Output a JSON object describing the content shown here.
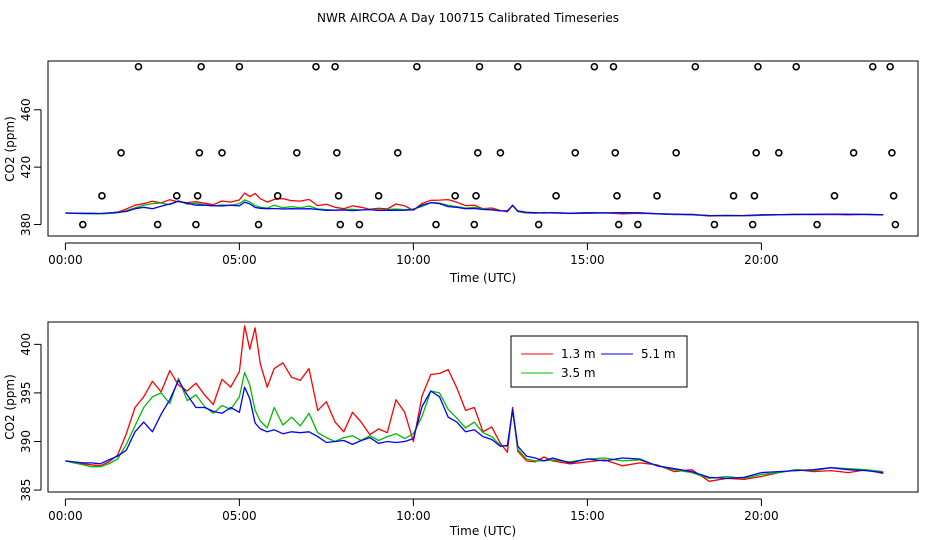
{
  "page_title": "NWR AIRCOA A  Day 100715  Calibrated Timeseries",
  "chart_data": [
    {
      "type": "scatter",
      "title": "",
      "xlabel": "Time (UTC)",
      "ylabel": "CO2 (ppm)",
      "xlim": [
        -0.5,
        24.5
      ],
      "ylim": [
        372,
        494
      ],
      "x_ticks": [
        0,
        5,
        10,
        15,
        20
      ],
      "x_tick_labels": [
        "00:00",
        "05:00",
        "10:00",
        "15:00",
        "20:00"
      ],
      "y_ticks": [
        380,
        420,
        460
      ],
      "y_tick_labels": [
        "380",
        "420",
        "460"
      ],
      "calibration_points": [
        {
          "x": 0.5,
          "y": 380
        },
        {
          "x": 1.05,
          "y": 400
        },
        {
          "x": 1.6,
          "y": 430
        },
        {
          "x": 2.1,
          "y": 490
        },
        {
          "x": 2.65,
          "y": 380
        },
        {
          "x": 3.2,
          "y": 400
        },
        {
          "x": 3.75,
          "y": 380
        },
        {
          "x": 3.8,
          "y": 400
        },
        {
          "x": 3.85,
          "y": 430
        },
        {
          "x": 3.9,
          "y": 490
        },
        {
          "x": 4.5,
          "y": 430
        },
        {
          "x": 5.0,
          "y": 490
        },
        {
          "x": 5.55,
          "y": 380
        },
        {
          "x": 6.1,
          "y": 400
        },
        {
          "x": 6.65,
          "y": 430
        },
        {
          "x": 7.2,
          "y": 490
        },
        {
          "x": 7.75,
          "y": 490
        },
        {
          "x": 7.8,
          "y": 430
        },
        {
          "x": 7.85,
          "y": 400
        },
        {
          "x": 7.9,
          "y": 380
        },
        {
          "x": 8.45,
          "y": 380
        },
        {
          "x": 9.0,
          "y": 400
        },
        {
          "x": 9.55,
          "y": 430
        },
        {
          "x": 10.1,
          "y": 490
        },
        {
          "x": 10.65,
          "y": 380
        },
        {
          "x": 11.2,
          "y": 400
        },
        {
          "x": 11.75,
          "y": 380
        },
        {
          "x": 11.8,
          "y": 400
        },
        {
          "x": 11.85,
          "y": 430
        },
        {
          "x": 11.9,
          "y": 490
        },
        {
          "x": 12.5,
          "y": 430
        },
        {
          "x": 13.0,
          "y": 490
        },
        {
          "x": 13.6,
          "y": 380
        },
        {
          "x": 14.1,
          "y": 400
        },
        {
          "x": 14.65,
          "y": 430
        },
        {
          "x": 15.2,
          "y": 490
        },
        {
          "x": 15.75,
          "y": 490
        },
        {
          "x": 15.8,
          "y": 430
        },
        {
          "x": 15.85,
          "y": 400
        },
        {
          "x": 15.9,
          "y": 380
        },
        {
          "x": 16.45,
          "y": 380
        },
        {
          "x": 17.0,
          "y": 400
        },
        {
          "x": 17.55,
          "y": 430
        },
        {
          "x": 18.1,
          "y": 490
        },
        {
          "x": 18.65,
          "y": 380
        },
        {
          "x": 19.2,
          "y": 400
        },
        {
          "x": 19.75,
          "y": 380
        },
        {
          "x": 19.8,
          "y": 400
        },
        {
          "x": 19.85,
          "y": 430
        },
        {
          "x": 19.9,
          "y": 490
        },
        {
          "x": 20.5,
          "y": 430
        },
        {
          "x": 21.0,
          "y": 490
        },
        {
          "x": 21.6,
          "y": 380
        },
        {
          "x": 22.1,
          "y": 400
        },
        {
          "x": 22.65,
          "y": 430
        },
        {
          "x": 23.2,
          "y": 490
        },
        {
          "x": 23.7,
          "y": 490
        },
        {
          "x": 23.75,
          "y": 430
        },
        {
          "x": 23.8,
          "y": 400
        },
        {
          "x": 23.85,
          "y": 380
        }
      ],
      "ambient_lines": "same 1.3 m / 3.5 m / 5.1 m series as the lower panel, drawn at this scale"
    },
    {
      "type": "line",
      "xlabel": "Time (UTC)",
      "ylabel": "CO2 (ppm)",
      "xlim": [
        -0.5,
        24.5
      ],
      "ylim": [
        384.8,
        402.3
      ],
      "x_ticks": [
        0,
        5,
        10,
        15,
        20
      ],
      "x_tick_labels": [
        "00:00",
        "05:00",
        "10:00",
        "15:00",
        "20:00"
      ],
      "y_ticks": [
        385,
        390,
        395,
        400
      ],
      "y_tick_labels": [
        "385",
        "390",
        "395",
        "400"
      ],
      "legend": [
        {
          "name": "1.3 m",
          "color": "#ff0000"
        },
        {
          "name": "3.5 m",
          "color": "#00bb00"
        },
        {
          "name": "5.1 m",
          "color": "#0000ff"
        }
      ],
      "series": [
        {
          "name": "1.3 m",
          "color": "#ff0000",
          "x": [
            0.0,
            0.25,
            0.5,
            0.75,
            1.0,
            1.25,
            1.5,
            1.75,
            2.0,
            2.25,
            2.5,
            2.75,
            3.0,
            3.25,
            3.5,
            3.75,
            4.0,
            4.25,
            4.5,
            4.75,
            5.0,
            5.15,
            5.3,
            5.45,
            5.6,
            5.8,
            6.0,
            6.25,
            6.5,
            6.75,
            7.0,
            7.25,
            7.5,
            7.75,
            8.0,
            8.25,
            8.5,
            8.75,
            9.0,
            9.25,
            9.5,
            9.75,
            10.0,
            10.25,
            10.5,
            10.75,
            11.0,
            11.25,
            11.5,
            11.75,
            12.0,
            12.25,
            12.5,
            12.7,
            12.85,
            13.0,
            13.25,
            13.5,
            13.75,
            14.0,
            14.5,
            15.0,
            15.5,
            16.0,
            16.5,
            17.0,
            17.5,
            18.0,
            18.5,
            19.0,
            19.5,
            20.0,
            20.5,
            21.0,
            21.5,
            22.0,
            22.5,
            23.0,
            23.5
          ],
          "y": [
            388.0,
            387.8,
            387.7,
            387.6,
            387.5,
            387.9,
            388.6,
            390.8,
            393.5,
            394.6,
            396.2,
            395.1,
            397.3,
            395.8,
            395.2,
            396.0,
            394.8,
            393.8,
            396.4,
            395.6,
            397.2,
            401.9,
            399.5,
            401.7,
            398.0,
            395.6,
            397.5,
            398.1,
            396.6,
            396.3,
            397.5,
            393.2,
            394.1,
            392.0,
            391.0,
            393.0,
            392.0,
            390.7,
            391.3,
            390.9,
            394.3,
            393.0,
            390.0,
            394.7,
            396.9,
            397.0,
            397.4,
            395.5,
            393.2,
            393.5,
            391.0,
            391.5,
            389.8,
            388.9,
            393.5,
            389.0,
            388.0,
            387.9,
            388.4,
            388.0,
            387.7,
            387.9,
            388.1,
            387.5,
            387.8,
            387.6,
            386.9,
            387.1,
            385.9,
            386.2,
            386.1,
            386.4,
            386.8,
            387.1,
            386.9,
            387.0,
            386.8,
            387.1,
            386.7
          ]
        },
        {
          "name": "3.5 m",
          "color": "#00bb00",
          "x": [
            0.0,
            0.25,
            0.5,
            0.75,
            1.0,
            1.25,
            1.5,
            1.75,
            2.0,
            2.25,
            2.5,
            2.75,
            3.0,
            3.25,
            3.5,
            3.75,
            4.0,
            4.25,
            4.5,
            4.75,
            5.0,
            5.15,
            5.3,
            5.45,
            5.6,
            5.8,
            6.0,
            6.25,
            6.5,
            6.75,
            7.0,
            7.25,
            7.5,
            7.75,
            8.0,
            8.25,
            8.5,
            8.75,
            9.0,
            9.25,
            9.5,
            9.75,
            10.0,
            10.25,
            10.5,
            10.75,
            11.0,
            11.25,
            11.5,
            11.75,
            12.0,
            12.25,
            12.5,
            12.7,
            12.85,
            13.0,
            13.25,
            13.5,
            13.75,
            14.0,
            14.5,
            15.0,
            15.5,
            16.0,
            16.5,
            17.0,
            17.5,
            18.0,
            18.5,
            19.0,
            19.5,
            20.0,
            20.5,
            21.0,
            21.5,
            22.0,
            22.5,
            23.0,
            23.5
          ],
          "y": [
            388.0,
            387.8,
            387.6,
            387.4,
            387.4,
            387.7,
            388.2,
            389.7,
            391.6,
            393.5,
            394.6,
            395.0,
            393.9,
            396.5,
            394.2,
            394.8,
            393.6,
            392.9,
            393.7,
            393.3,
            394.6,
            397.1,
            395.8,
            393.2,
            392.1,
            391.4,
            393.5,
            391.7,
            392.5,
            391.6,
            392.9,
            390.9,
            390.4,
            390.0,
            390.4,
            390.6,
            390.1,
            390.6,
            390.1,
            390.5,
            390.8,
            390.3,
            390.8,
            392.6,
            395.2,
            395.0,
            393.3,
            392.4,
            391.4,
            392.0,
            390.9,
            390.5,
            389.6,
            389.5,
            393.2,
            389.2,
            388.2,
            388.0,
            388.0,
            388.1,
            387.9,
            388.2,
            388.3,
            388.0,
            388.1,
            387.5,
            387.1,
            386.8,
            386.2,
            386.4,
            386.2,
            386.6,
            386.8,
            387.1,
            387.0,
            387.3,
            387.2,
            387.1,
            386.9
          ]
        },
        {
          "name": "5.1 m",
          "color": "#0000ff",
          "x": [
            0.0,
            0.25,
            0.5,
            0.75,
            1.0,
            1.25,
            1.5,
            1.75,
            2.0,
            2.25,
            2.5,
            2.75,
            3.0,
            3.25,
            3.5,
            3.75,
            4.0,
            4.25,
            4.5,
            4.75,
            5.0,
            5.15,
            5.3,
            5.45,
            5.6,
            5.8,
            6.0,
            6.25,
            6.5,
            6.75,
            7.0,
            7.25,
            7.5,
            7.75,
            8.0,
            8.25,
            8.5,
            8.75,
            9.0,
            9.25,
            9.5,
            9.75,
            10.0,
            10.25,
            10.5,
            10.75,
            11.0,
            11.25,
            11.5,
            11.75,
            12.0,
            12.25,
            12.5,
            12.7,
            12.85,
            13.0,
            13.25,
            13.5,
            13.75,
            14.0,
            14.5,
            15.0,
            15.5,
            16.0,
            16.5,
            17.0,
            17.5,
            18.0,
            18.5,
            19.0,
            19.5,
            20.0,
            20.5,
            21.0,
            21.5,
            22.0,
            22.5,
            23.0,
            23.5
          ],
          "y": [
            388.0,
            387.9,
            387.8,
            387.8,
            387.7,
            388.1,
            388.5,
            389.1,
            391.0,
            392.0,
            391.0,
            392.8,
            394.3,
            396.3,
            394.8,
            393.5,
            393.5,
            393.1,
            392.9,
            393.5,
            393.0,
            395.6,
            394.4,
            391.9,
            391.3,
            391.0,
            391.2,
            390.8,
            391.0,
            390.9,
            391.0,
            390.5,
            389.9,
            390.0,
            390.1,
            389.7,
            390.1,
            390.4,
            389.8,
            390.0,
            389.9,
            390.0,
            390.3,
            393.6,
            395.2,
            394.6,
            392.5,
            392.0,
            391.0,
            391.2,
            390.5,
            390.2,
            389.5,
            389.6,
            393.3,
            389.5,
            388.5,
            388.3,
            388.0,
            388.3,
            387.8,
            388.2,
            388.0,
            388.3,
            388.2,
            387.5,
            387.2,
            386.9,
            386.3,
            386.2,
            386.3,
            386.8,
            386.9,
            387.0,
            387.1,
            387.3,
            387.1,
            387.0,
            386.8
          ]
        }
      ]
    }
  ]
}
